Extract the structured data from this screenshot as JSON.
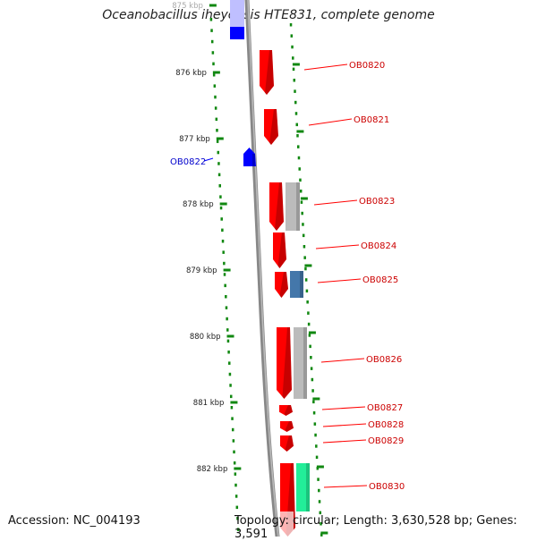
{
  "title": "Oceanobacillus iheyensis HTE831, complete genome",
  "footer": {
    "accession": "Accession: NC_004193",
    "summary": "Topology: circular; Length: 3,630,528 bp; Genes: 3,591"
  },
  "colors": {
    "forward_gene": "#ff0000",
    "reverse_gene": "#0000ff",
    "backbone": "#888888",
    "tick": "#118811",
    "feature_gray": "#bbbbbb",
    "feature_steel": "#4477aa",
    "feature_green": "#22ee99"
  },
  "ruler": {
    "labels": [
      {
        "kbp": 875,
        "text": "875 kbp"
      },
      {
        "kbp": 876,
        "text": "876 kbp"
      },
      {
        "kbp": 877,
        "text": "877 kbp"
      },
      {
        "kbp": 878,
        "text": "878 kbp"
      },
      {
        "kbp": 879,
        "text": "879 kbp"
      },
      {
        "kbp": 880,
        "text": "880 kbp"
      },
      {
        "kbp": 881,
        "text": "881 kbp"
      },
      {
        "kbp": 882,
        "text": "882 kbp"
      }
    ]
  },
  "genes": [
    {
      "label": "OB0820",
      "strand": "forward"
    },
    {
      "label": "OB0821",
      "strand": "forward"
    },
    {
      "label": "OB0822",
      "strand": "reverse"
    },
    {
      "label": "OB0823",
      "strand": "forward"
    },
    {
      "label": "OB0824",
      "strand": "forward"
    },
    {
      "label": "OB0825",
      "strand": "forward"
    },
    {
      "label": "OB0826",
      "strand": "forward"
    },
    {
      "label": "OB0827",
      "strand": "forward"
    },
    {
      "label": "OB0828",
      "strand": "forward"
    },
    {
      "label": "OB0829",
      "strand": "forward"
    },
    {
      "label": "OB0830",
      "strand": "forward"
    }
  ]
}
